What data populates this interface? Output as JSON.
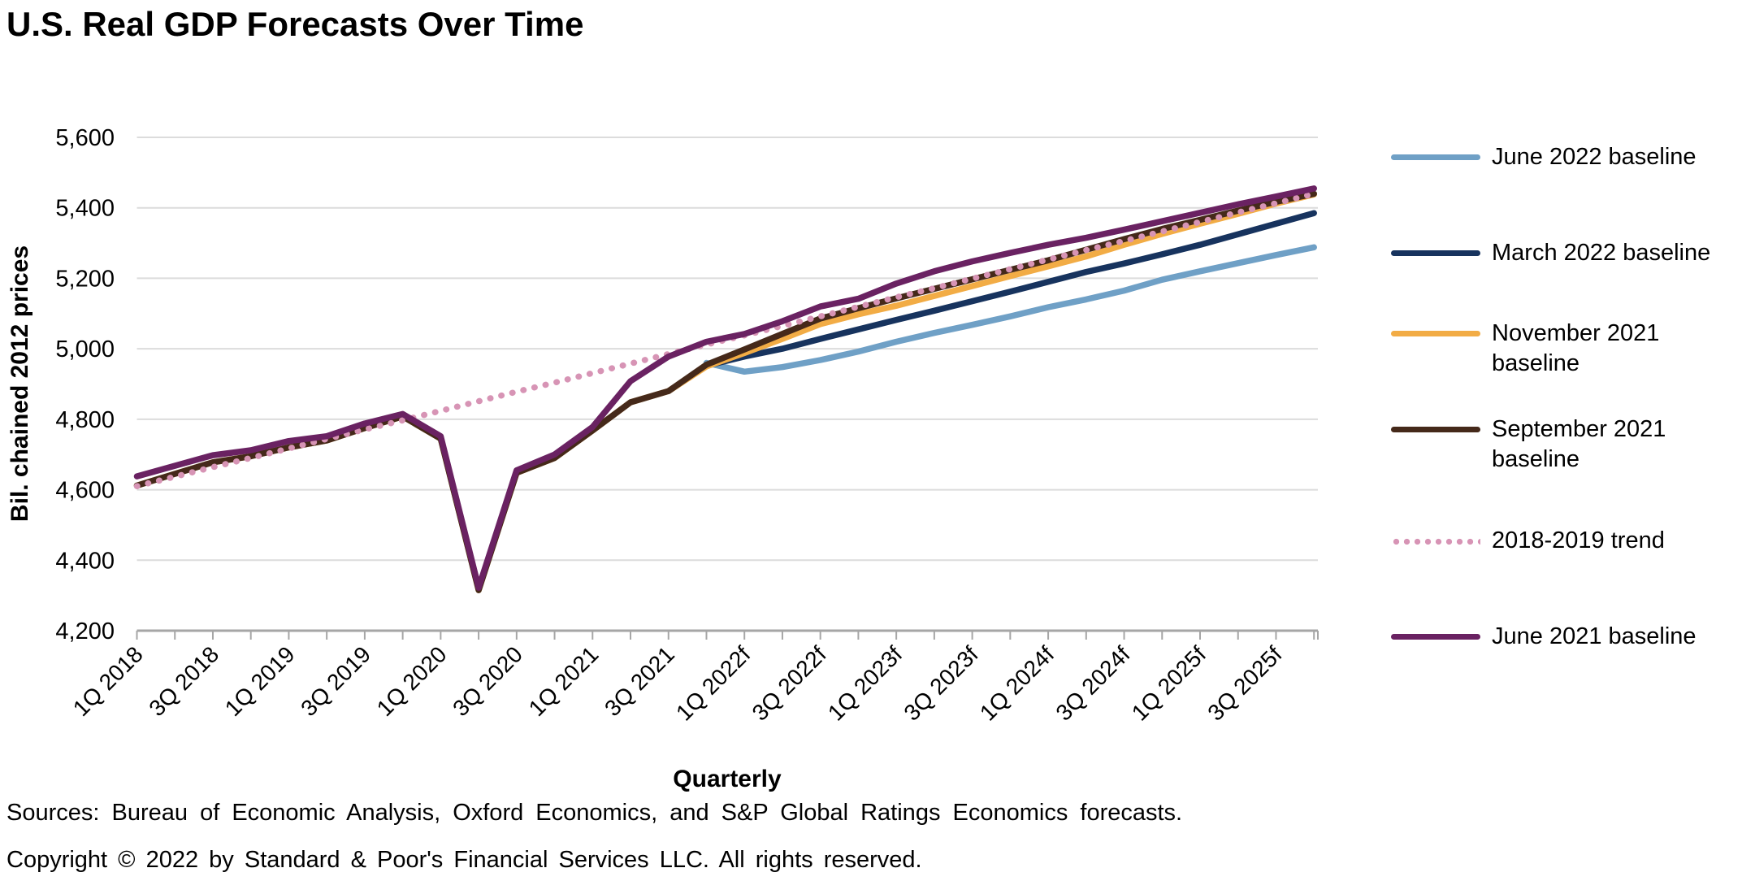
{
  "footer": {
    "sources": "Sources: Bureau of Economic Analysis, Oxford Economics, and S&P Global Ratings Economics forecasts.",
    "copyright": "Copyright © 2022 by Standard & Poor's Financial Services LLC. All rights reserved."
  },
  "colors": {
    "gridline": "#DCDCDC",
    "axis": "#A6A6A6",
    "text": "#000000",
    "background": "#FFFFFF"
  },
  "chart_data": {
    "type": "line",
    "title": "U.S. Real GDP Forecasts Over Time",
    "xlabel": "Quarterly",
    "ylabel": "Bil. chained 2012 prices",
    "ylim": [
      4200,
      5600
    ],
    "y_tick_step": 200,
    "y_tick_labels": [
      "4,200",
      "4,400",
      "4,600",
      "4,800",
      "5,000",
      "5,200",
      "5,400",
      "5,600"
    ],
    "x_label_every": 2,
    "grid": "horizontal-only",
    "legend_position": "right",
    "categories": [
      "1Q 2018",
      "2Q 2018",
      "3Q 2018",
      "4Q 2018",
      "1Q 2019",
      "2Q 2019",
      "3Q 2019",
      "4Q 2019",
      "1Q 2020",
      "2Q 2020",
      "3Q 2020",
      "4Q 2020",
      "1Q 2021",
      "2Q 2021",
      "3Q 2021",
      "4Q 2021",
      "1Q 2022f",
      "2Q 2022f",
      "3Q 2022f",
      "4Q 2022f",
      "1Q 2023f",
      "2Q 2023f",
      "3Q 2023f",
      "4Q 2023f",
      "1Q 2024f",
      "2Q 2024f",
      "3Q 2024f",
      "4Q 2024f",
      "1Q 2025f",
      "2Q 2025f",
      "3Q 2025f",
      "4Q 2025f"
    ],
    "series": [
      {
        "name": "June 2022 baseline",
        "color": "#6FA0C6",
        "line_style": "solid",
        "values": [
          null,
          null,
          null,
          null,
          null,
          null,
          null,
          null,
          null,
          null,
          null,
          null,
          null,
          null,
          null,
          4960,
          4935,
          4948,
          4968,
          4992,
          5020,
          5045,
          5068,
          5092,
          5118,
          5140,
          5165,
          5196,
          5220,
          5243,
          5266,
          5288
        ]
      },
      {
        "name": "March 2022 baseline",
        "color": "#17335E",
        "line_style": "solid",
        "values": [
          null,
          null,
          null,
          null,
          null,
          null,
          null,
          null,
          null,
          null,
          null,
          null,
          null,
          null,
          4880,
          4952,
          4978,
          5000,
          5028,
          5055,
          5082,
          5108,
          5135,
          5162,
          5190,
          5218,
          5242,
          5268,
          5295,
          5325,
          5355,
          5385
        ]
      },
      {
        "name": "November 2021 baseline",
        "color": "#F2AC45",
        "line_style": "solid",
        "values": [
          4612,
          4645,
          4678,
          4695,
          4720,
          4740,
          4775,
          4808,
          4745,
          4315,
          4648,
          4690,
          4768,
          4848,
          4880,
          4950,
          4988,
          5028,
          5070,
          5098,
          5122,
          5150,
          5178,
          5206,
          5234,
          5262,
          5295,
          5326,
          5355,
          5383,
          5412,
          5438
        ]
      },
      {
        "name": "September 2021 baseline",
        "color": "#45291A",
        "line_style": "solid",
        "values": [
          4612,
          4645,
          4678,
          4695,
          4720,
          4740,
          4775,
          4808,
          4745,
          4315,
          4648,
          4690,
          4768,
          4848,
          4880,
          4955,
          4998,
          5042,
          5086,
          5115,
          5143,
          5170,
          5197,
          5224,
          5251,
          5281,
          5311,
          5340,
          5366,
          5392,
          5417,
          5440
        ]
      },
      {
        "name": "2018-2019 trend",
        "color": "#D794B5",
        "line_style": "dotted",
        "values": [
          4610,
          4637,
          4664,
          4690,
          4717,
          4744,
          4771,
          4797,
          4824,
          4851,
          4878,
          4904,
          4931,
          4958,
          4985,
          5012,
          5038,
          5065,
          5092,
          5119,
          5146,
          5172,
          5199,
          5226,
          5253,
          5280,
          5306,
          5333,
          5360,
          5387,
          5413,
          5440
        ]
      },
      {
        "name": "June 2021 baseline",
        "color": "#6A2262",
        "line_style": "solid",
        "values": [
          4638,
          4668,
          4698,
          4712,
          4738,
          4752,
          4788,
          4815,
          4752,
          4322,
          4655,
          4700,
          4778,
          4908,
          4978,
          5020,
          5042,
          5078,
          5120,
          5142,
          5185,
          5220,
          5248,
          5272,
          5295,
          5315,
          5338,
          5362,
          5386,
          5410,
          5432,
          5455
        ]
      }
    ]
  }
}
